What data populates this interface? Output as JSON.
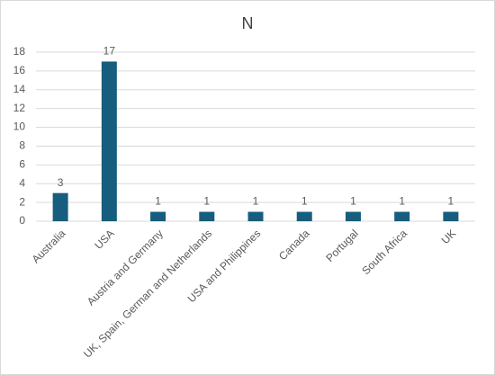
{
  "chart_data": {
    "type": "bar",
    "title": "N",
    "categories": [
      "Australia",
      "USA",
      "Austria and Germany",
      "UK, Spain, German and Netherlands",
      "USA and Philippines",
      "Canada",
      "Portugal",
      "South Africa",
      "UK"
    ],
    "values": [
      3,
      17,
      1,
      1,
      1,
      1,
      1,
      1,
      1
    ],
    "color": "#175d7e",
    "ylim": [
      0,
      18
    ],
    "yticks": [
      0,
      2,
      4,
      6,
      8,
      10,
      12,
      14,
      16,
      18
    ],
    "grid": true
  }
}
